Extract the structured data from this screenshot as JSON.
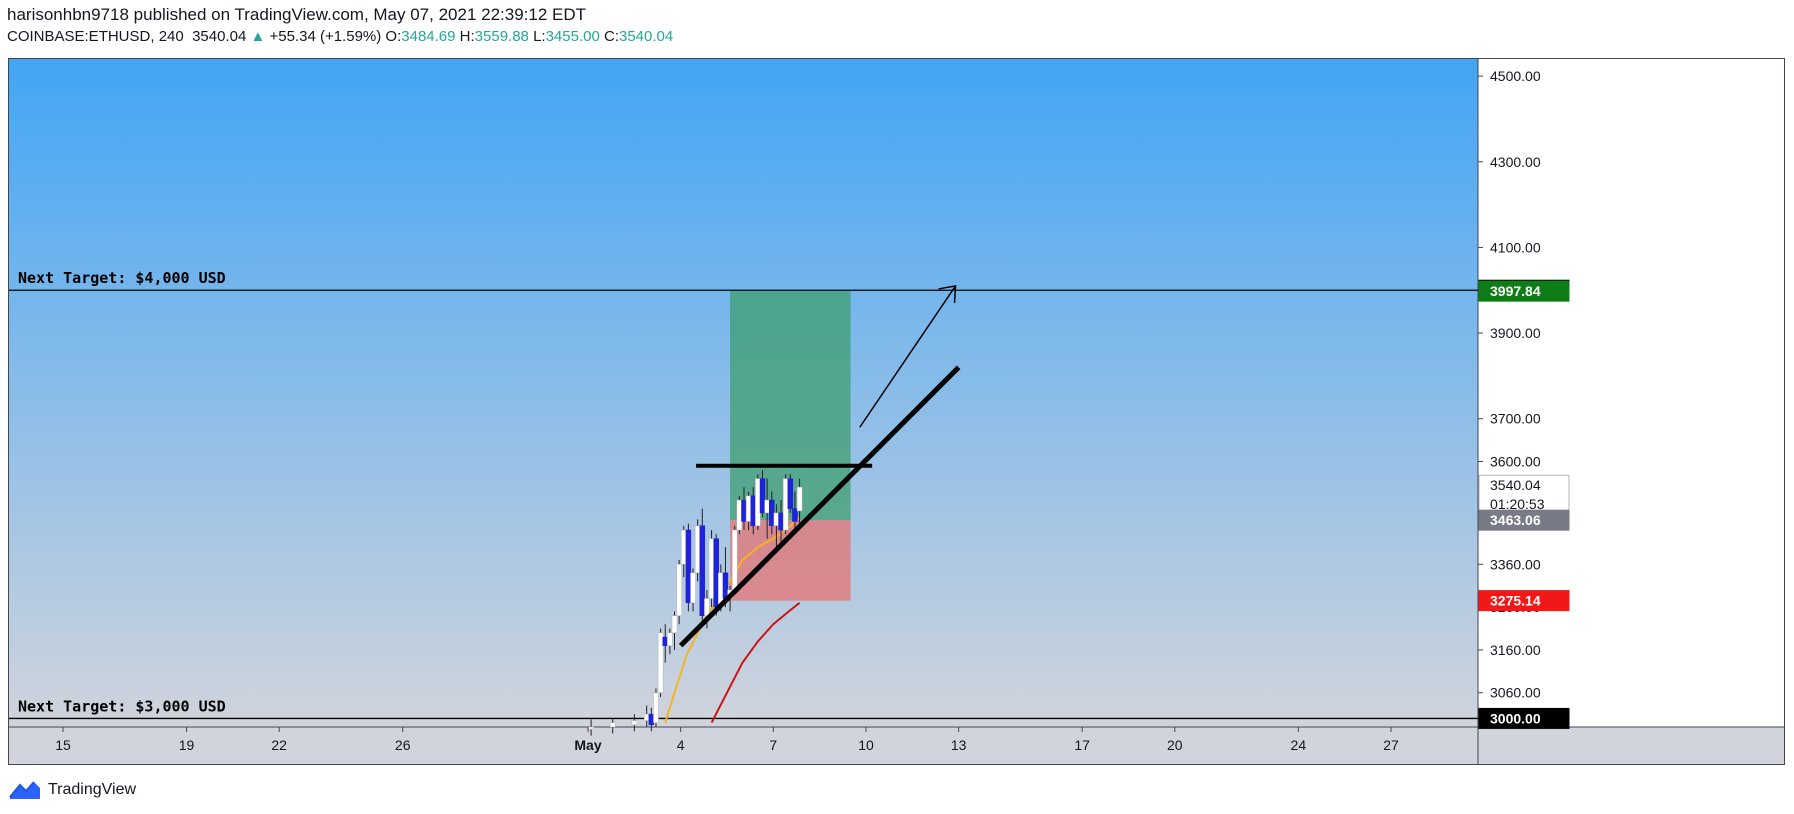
{
  "header": {
    "publisher_line": "harisonhbn9718 published on TradingView.com, May 07, 2021 22:39:12 EDT",
    "symbol": "COINBASE:ETHUSD, 240",
    "last": "3540.04",
    "change_arrow": "▲",
    "change": "+55.34 (+1.59%)",
    "o_label": "O:",
    "o_value": "3484.69",
    "h_label": "H:",
    "h_value": "3559.88",
    "l_label": "L:",
    "l_value": "3455.00",
    "c_label": "C:",
    "c_value": "3540.04"
  },
  "footer": {
    "brand": "TradingView"
  },
  "colors": {
    "bg_top": "#42a5f5",
    "bg_bottom": "#d1d4dc",
    "up_candle": "#ffffff",
    "down_candle": "#1e22d8",
    "ema_fast": "#f5b323",
    "ema_slow": "#cc1414",
    "profit_zone": "#3d9e6f",
    "loss_zone": "#e57373",
    "label_black": "#000000",
    "label_green": "#0e7d17",
    "label_red": "#f21818",
    "label_gray": "#787b86"
  },
  "chart_data": {
    "type": "candlestick",
    "title": "",
    "xlabel": "",
    "ylabel": "",
    "ylim": [
      2980,
      4540
    ],
    "y_ticks": [
      3000,
      3060,
      3160,
      3260,
      3360,
      3460,
      3600,
      3700,
      3900,
      4100,
      4300,
      4500
    ],
    "y_tick_labels": [
      "3000.00",
      "3060.00",
      "3160.00",
      "3260.00",
      "3360.00",
      "3460.00",
      "3600.00",
      "3700.00",
      "3900.00",
      "4100.00",
      "4300.00",
      "4500.00"
    ],
    "x_tick_labels": [
      "15",
      "19",
      "22",
      "26",
      "May",
      "4",
      "7",
      "10",
      "13",
      "17",
      "20",
      "24",
      "27"
    ],
    "x_tick_days": [
      -16,
      -12,
      -9,
      -5,
      1,
      4,
      7,
      10,
      13,
      17,
      20,
      24,
      27
    ],
    "candles": [
      {
        "day": 1.1,
        "o": 2975,
        "h": 2998,
        "l": 2960,
        "c": 2980
      },
      {
        "day": 1.8,
        "o": 2980,
        "h": 3000,
        "l": 2965,
        "c": 2990
      },
      {
        "day": 2.5,
        "o": 2985,
        "h": 3010,
        "l": 2970,
        "c": 2995
      },
      {
        "day": 2.9,
        "o": 2995,
        "h": 3030,
        "l": 2980,
        "c": 3010
      },
      {
        "day": 3.05,
        "o": 3010,
        "h": 3025,
        "l": 2970,
        "c": 2985
      },
      {
        "day": 3.2,
        "o": 2990,
        "h": 3070,
        "l": 2980,
        "c": 3060
      },
      {
        "day": 3.35,
        "o": 3060,
        "h": 3210,
        "l": 3050,
        "c": 3200
      },
      {
        "day": 3.5,
        "o": 3190,
        "h": 3220,
        "l": 3130,
        "c": 3170
      },
      {
        "day": 3.65,
        "o": 3170,
        "h": 3210,
        "l": 3150,
        "c": 3200
      },
      {
        "day": 3.8,
        "o": 3200,
        "h": 3250,
        "l": 3160,
        "c": 3240
      },
      {
        "day": 3.95,
        "o": 3240,
        "h": 3370,
        "l": 3220,
        "c": 3360
      },
      {
        "day": 4.1,
        "o": 3360,
        "h": 3450,
        "l": 3330,
        "c": 3440
      },
      {
        "day": 4.25,
        "o": 3440,
        "h": 3455,
        "l": 3250,
        "c": 3270
      },
      {
        "day": 4.4,
        "o": 3270,
        "h": 3350,
        "l": 3250,
        "c": 3340
      },
      {
        "day": 4.55,
        "o": 3340,
        "h": 3465,
        "l": 3320,
        "c": 3450
      },
      {
        "day": 4.7,
        "o": 3450,
        "h": 3490,
        "l": 3220,
        "c": 3240
      },
      {
        "day": 4.85,
        "o": 3240,
        "h": 3300,
        "l": 3210,
        "c": 3280
      },
      {
        "day": 5.0,
        "o": 3280,
        "h": 3440,
        "l": 3260,
        "c": 3420
      },
      {
        "day": 5.15,
        "o": 3420,
        "h": 3430,
        "l": 3240,
        "c": 3260
      },
      {
        "day": 5.3,
        "o": 3260,
        "h": 3360,
        "l": 3250,
        "c": 3340
      },
      {
        "day": 5.45,
        "o": 3340,
        "h": 3400,
        "l": 3260,
        "c": 3280
      },
      {
        "day": 5.6,
        "o": 3280,
        "h": 3310,
        "l": 3250,
        "c": 3300
      },
      {
        "day": 5.75,
        "o": 3300,
        "h": 3450,
        "l": 3290,
        "c": 3440
      },
      {
        "day": 5.9,
        "o": 3440,
        "h": 3520,
        "l": 3430,
        "c": 3510
      },
      {
        "day": 6.05,
        "o": 3510,
        "h": 3540,
        "l": 3440,
        "c": 3460
      },
      {
        "day": 6.2,
        "o": 3460,
        "h": 3530,
        "l": 3440,
        "c": 3520
      },
      {
        "day": 6.35,
        "o": 3520,
        "h": 3540,
        "l": 3430,
        "c": 3450
      },
      {
        "day": 6.5,
        "o": 3450,
        "h": 3570,
        "l": 3440,
        "c": 3560
      },
      {
        "day": 6.65,
        "o": 3560,
        "h": 3580,
        "l": 3470,
        "c": 3480
      },
      {
        "day": 6.8,
        "o": 3480,
        "h": 3560,
        "l": 3420,
        "c": 3510
      },
      {
        "day": 6.95,
        "o": 3510,
        "h": 3530,
        "l": 3430,
        "c": 3450
      },
      {
        "day": 7.1,
        "o": 3450,
        "h": 3500,
        "l": 3400,
        "c": 3480
      },
      {
        "day": 7.25,
        "o": 3480,
        "h": 3510,
        "l": 3410,
        "c": 3440
      },
      {
        "day": 7.4,
        "o": 3440,
        "h": 3570,
        "l": 3430,
        "c": 3560
      },
      {
        "day": 7.55,
        "o": 3560,
        "h": 3570,
        "l": 3480,
        "c": 3490
      },
      {
        "day": 7.7,
        "o": 3490,
        "h": 3530,
        "l": 3440,
        "c": 3460
      },
      {
        "day": 7.85,
        "o": 3484.69,
        "h": 3559.88,
        "l": 3455.0,
        "c": 3540.04
      }
    ],
    "ema_fast": [
      [
        3.5,
        2990
      ],
      [
        3.8,
        3060
      ],
      [
        4.2,
        3150
      ],
      [
        4.7,
        3220
      ],
      [
        5.2,
        3280
      ],
      [
        5.6,
        3320
      ],
      [
        6.0,
        3370
      ],
      [
        6.5,
        3400
      ],
      [
        7.0,
        3420
      ],
      [
        7.5,
        3445
      ],
      [
        7.85,
        3470
      ]
    ],
    "ema_slow": [
      [
        5.0,
        2990
      ],
      [
        5.5,
        3060
      ],
      [
        6.0,
        3130
      ],
      [
        6.5,
        3180
      ],
      [
        7.0,
        3220
      ],
      [
        7.5,
        3250
      ],
      [
        7.85,
        3270
      ]
    ],
    "long_position": {
      "day_start": 5.6,
      "day_end": 9.5,
      "entry": 3463.06,
      "target": 3997.84,
      "stop": 3275.14
    },
    "trendline_support": [
      [
        4.0,
        3170
      ],
      [
        13.0,
        3820
      ]
    ],
    "resistance_line": {
      "day_start": 4.5,
      "day_end": 10.2,
      "price": 3590
    },
    "arrow": [
      [
        9.8,
        3680
      ],
      [
        12.9,
        4010
      ]
    ],
    "horizontal_levels": [
      {
        "price": 4000,
        "label": "Next Target: $4,000 USD"
      },
      {
        "price": 3000,
        "label": "Next Target: $3,000 USD"
      }
    ],
    "price_labels": [
      {
        "price": 4000,
        "text": "4000.00",
        "kind": "black"
      },
      {
        "price": 3997.84,
        "text": "3997.84",
        "kind": "green"
      },
      {
        "price": 3540.04,
        "text": "3540.04",
        "sub": "01:20:53",
        "kind": "white"
      },
      {
        "price": 3463.06,
        "text": "3463.06",
        "kind": "gray"
      },
      {
        "price": 3275.14,
        "text": "3275.14",
        "kind": "red"
      },
      {
        "price": 3000,
        "text": "3000.00",
        "kind": "black"
      }
    ],
    "grid": false
  }
}
